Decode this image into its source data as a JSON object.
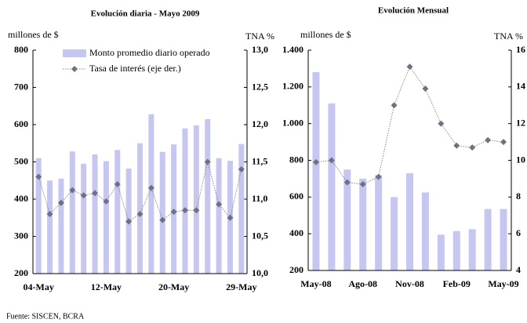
{
  "charts": [
    {
      "type": "bar-line",
      "title": "Evolución diaria - Mayo 2009",
      "ylabel": "millones de $",
      "y2label": "TNA %",
      "categories": [
        "04-May",
        null,
        null,
        null,
        null,
        null,
        "12-May",
        null,
        null,
        null,
        null,
        null,
        "20-May",
        null,
        null,
        null,
        null,
        null,
        "29-May"
      ],
      "series": [
        {
          "name": "Monto promedio diario operado",
          "type": "bar",
          "color": "#c5c7f1",
          "axis": "y",
          "values": [
            510,
            450,
            455,
            528,
            495,
            520,
            502,
            532,
            482,
            550,
            628,
            527,
            547,
            590,
            598,
            615,
            510,
            503,
            548
          ]
        },
        {
          "name": "Tasa de interés (eje der.)",
          "type": "line",
          "color": "#6f6f85",
          "axis": "y2",
          "values": [
            11.3,
            10.8,
            10.95,
            11.12,
            11.05,
            11.08,
            10.97,
            11.2,
            10.7,
            10.8,
            11.15,
            10.72,
            10.83,
            10.85,
            10.85,
            11.5,
            10.93,
            10.75,
            11.4
          ]
        }
      ],
      "ylim": [
        200,
        800
      ],
      "yticks": [
        200,
        300,
        400,
        500,
        600,
        700,
        800
      ],
      "y2lim": [
        10,
        13
      ],
      "y2ticks": [
        {
          "value": 10,
          "label": "10,0"
        },
        {
          "value": 10.5,
          "label": "10,5"
        },
        {
          "value": 11,
          "label": "11,0"
        },
        {
          "value": 11.5,
          "label": "11,5"
        },
        {
          "value": 12,
          "label": "12,0"
        },
        {
          "value": 12.5,
          "label": "12,5"
        },
        {
          "value": 13,
          "label": "13,0"
        }
      ],
      "legend": "upper left"
    },
    {
      "type": "bar-line",
      "title": "Evolución Mensual",
      "ylabel": "millones de $",
      "y2label": "TNA %",
      "categories": [
        "May-08",
        null,
        null,
        "Ago-08",
        null,
        null,
        "Nov-08",
        null,
        null,
        "Feb-09",
        null,
        null,
        "May-09"
      ],
      "series": [
        {
          "type": "bar",
          "color": "#c5c7f1",
          "axis": "y",
          "values": [
            1280,
            1110,
            750,
            700,
            720,
            600,
            730,
            625,
            395,
            415,
            425,
            535,
            535
          ]
        },
        {
          "type": "line",
          "color": "#6f6f85",
          "axis": "y2",
          "values": [
            9.9,
            10.0,
            8.8,
            8.7,
            9.1,
            13.0,
            15.1,
            13.9,
            12.0,
            10.8,
            10.7,
            11.1,
            11.0
          ]
        }
      ],
      "ylim": [
        200,
        1400
      ],
      "yticks": [
        200,
        400,
        600,
        800,
        {
          "value": 1000,
          "label": "1.000"
        },
        {
          "value": 1200,
          "label": "1.200"
        },
        {
          "value": 1400,
          "label": "1.400"
        }
      ],
      "y2lim": [
        4,
        16
      ],
      "y2ticks": [
        4,
        6,
        8,
        10,
        12,
        14,
        16
      ]
    }
  ],
  "source": "Fuente: SISCEN, BCRA"
}
